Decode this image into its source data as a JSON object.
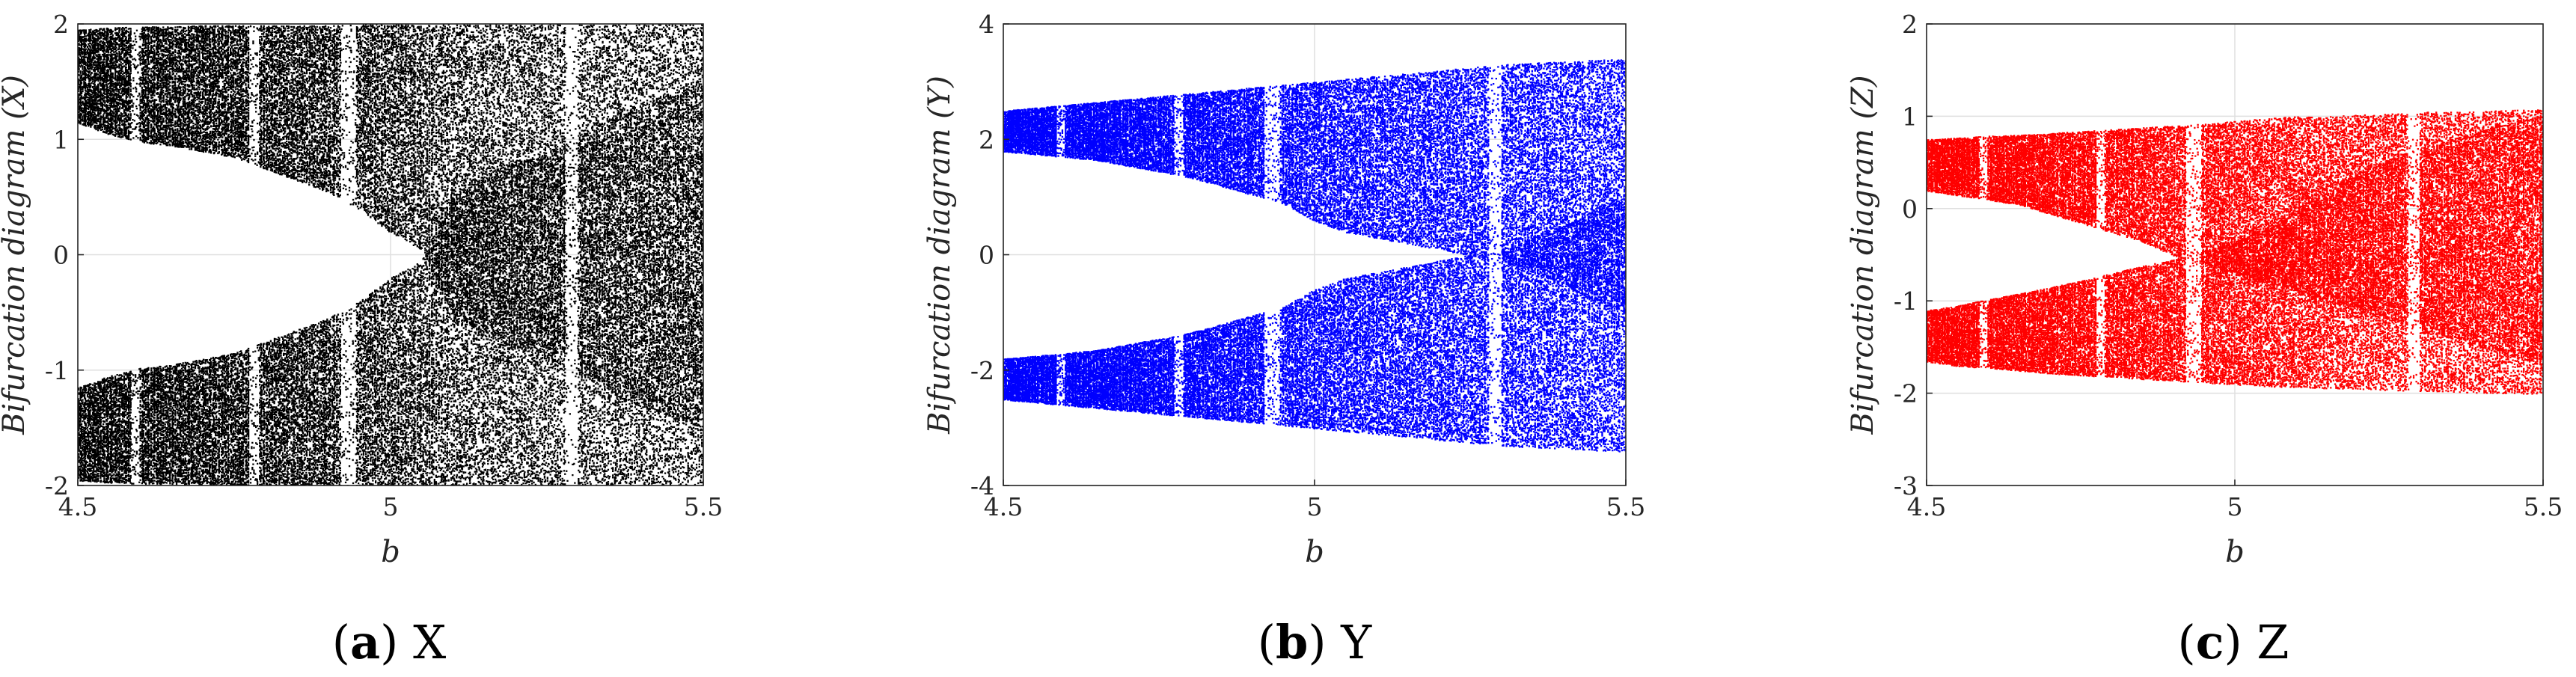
{
  "chart_data": [
    {
      "type": "scatter",
      "title": "",
      "caption_letter": "a",
      "caption_text": "X",
      "xlabel": "b",
      "ylabel": "Bifurcation diagram (X)",
      "xlim": [
        4.5,
        5.5
      ],
      "ylim": [
        -2,
        2
      ],
      "xticks": [
        "4.5",
        "5",
        "5.5"
      ],
      "yticks": [
        "-2",
        "-1",
        "0",
        "1",
        "2"
      ],
      "grid": true,
      "color": "#000000",
      "series": [
        {
          "x": [
            4.5,
            4.55,
            4.6,
            4.65,
            4.7,
            4.75,
            4.8,
            4.85,
            4.9,
            4.95,
            5.0,
            5.05,
            5.1,
            5.15,
            5.2,
            5.25,
            5.3,
            5.35,
            5.4,
            5.45,
            5.5
          ],
          "upper_max": [
            1.95,
            1.97,
            1.98,
            1.98,
            1.99,
            1.99,
            1.99,
            1.99,
            1.99,
            2.0,
            2.0,
            2.0,
            2.0,
            2.0,
            2.0,
            2.0,
            2.0,
            2.0,
            2.0,
            2.0,
            2.0
          ],
          "upper_min": [
            1.15,
            1.05,
            0.98,
            0.95,
            0.9,
            0.85,
            0.75,
            0.65,
            0.55,
            0.4,
            0.2,
            0.05,
            -0.5,
            -0.7,
            -0.8,
            -0.9,
            -1.0,
            -1.2,
            -1.3,
            -1.4,
            -1.5
          ],
          "lower_max": [
            -1.15,
            -1.05,
            -0.98,
            -0.95,
            -0.9,
            -0.85,
            -0.75,
            -0.65,
            -0.55,
            -0.4,
            -0.2,
            -0.05,
            0.5,
            0.7,
            0.8,
            0.9,
            1.0,
            1.2,
            1.3,
            1.4,
            1.5
          ],
          "lower_min": [
            -1.95,
            -1.97,
            -1.98,
            -1.98,
            -1.99,
            -1.99,
            -1.99,
            -1.99,
            -1.99,
            -2.0,
            -2.0,
            -2.0,
            -2.0,
            -2.0,
            -2.0,
            -2.0,
            -2.0,
            -2.0,
            -2.0,
            -2.0,
            -2.0
          ]
        }
      ]
    },
    {
      "type": "scatter",
      "title": "",
      "caption_letter": "b",
      "caption_text": "Y",
      "xlabel": "b",
      "ylabel": "Bifurcation diagram (Y)",
      "xlim": [
        4.5,
        5.5
      ],
      "ylim": [
        -4,
        4
      ],
      "xticks": [
        "4.5",
        "5",
        "5.5"
      ],
      "yticks": [
        "-4",
        "-2",
        "0",
        "2",
        "4"
      ],
      "grid": true,
      "color": "#0000ff",
      "series": [
        {
          "x": [
            4.5,
            4.55,
            4.6,
            4.65,
            4.7,
            4.75,
            4.8,
            4.85,
            4.9,
            4.95,
            5.0,
            5.05,
            5.1,
            5.15,
            5.2,
            5.25,
            5.3,
            5.35,
            5.4,
            5.45,
            5.5
          ],
          "upper_max": [
            2.5,
            2.55,
            2.6,
            2.65,
            2.7,
            2.75,
            2.8,
            2.85,
            2.9,
            2.95,
            3.0,
            3.05,
            3.1,
            3.15,
            3.2,
            3.25,
            3.3,
            3.33,
            3.35,
            3.38,
            3.4
          ],
          "upper_min": [
            1.8,
            1.75,
            1.7,
            1.65,
            1.55,
            1.45,
            1.35,
            1.2,
            1.05,
            0.9,
            0.6,
            0.4,
            0.3,
            0.2,
            0.1,
            0.0,
            -0.1,
            -0.3,
            -0.5,
            -0.8,
            -1.0
          ],
          "lower_max": [
            -1.8,
            -1.75,
            -1.7,
            -1.65,
            -1.55,
            -1.45,
            -1.35,
            -1.2,
            -1.05,
            -0.9,
            -0.6,
            -0.4,
            -0.3,
            -0.2,
            -0.1,
            0.0,
            0.1,
            0.3,
            0.5,
            0.8,
            1.0
          ],
          "lower_min": [
            -2.5,
            -2.55,
            -2.6,
            -2.65,
            -2.7,
            -2.75,
            -2.8,
            -2.85,
            -2.9,
            -2.95,
            -3.0,
            -3.05,
            -3.1,
            -3.15,
            -3.2,
            -3.25,
            -3.3,
            -3.33,
            -3.35,
            -3.38,
            -3.4
          ]
        }
      ]
    },
    {
      "type": "scatter",
      "title": "",
      "caption_letter": "c",
      "caption_text": "Z",
      "xlabel": "b",
      "ylabel": "Bifurcation diagram (Z)",
      "xlim": [
        4.5,
        5.5
      ],
      "ylim": [
        -3,
        2
      ],
      "xticks": [
        "4.5",
        "5",
        "5.5"
      ],
      "yticks": [
        "-3",
        "-2",
        "-1",
        "0",
        "1",
        "2"
      ],
      "grid": true,
      "color": "#ff0000",
      "series": [
        {
          "x": [
            4.5,
            4.55,
            4.6,
            4.65,
            4.7,
            4.75,
            4.8,
            4.85,
            4.9,
            4.95,
            5.0,
            5.05,
            5.1,
            5.15,
            5.2,
            5.25,
            5.3,
            5.35,
            5.4,
            5.45,
            5.5
          ],
          "upper_max": [
            0.75,
            0.77,
            0.79,
            0.8,
            0.82,
            0.84,
            0.86,
            0.88,
            0.9,
            0.92,
            0.95,
            0.98,
            1.0,
            1.0,
            1.02,
            1.03,
            1.05,
            1.05,
            1.06,
            1.07,
            1.08
          ],
          "upper_min": [
            0.2,
            0.15,
            0.1,
            0.05,
            -0.05,
            -0.15,
            -0.25,
            -0.35,
            -0.5,
            -0.6,
            -0.7,
            -0.8,
            -0.9,
            -1.0,
            -1.1,
            -1.2,
            -1.3,
            -1.4,
            -1.5,
            -1.6,
            -1.7
          ],
          "lower_max": [
            -1.1,
            -1.05,
            -0.98,
            -0.92,
            -0.85,
            -0.78,
            -0.7,
            -0.62,
            -0.55,
            -0.45,
            -0.35,
            -0.2,
            0.0,
            0.2,
            0.4,
            0.55,
            0.65,
            0.75,
            0.85,
            0.95,
            1.0
          ],
          "lower_min": [
            -1.65,
            -1.7,
            -1.72,
            -1.75,
            -1.78,
            -1.8,
            -1.82,
            -1.84,
            -1.86,
            -1.88,
            -1.9,
            -1.92,
            -1.93,
            -1.94,
            -1.95,
            -1.96,
            -1.97,
            -1.98,
            -1.99,
            -2.0,
            -2.0
          ]
        }
      ]
    }
  ]
}
